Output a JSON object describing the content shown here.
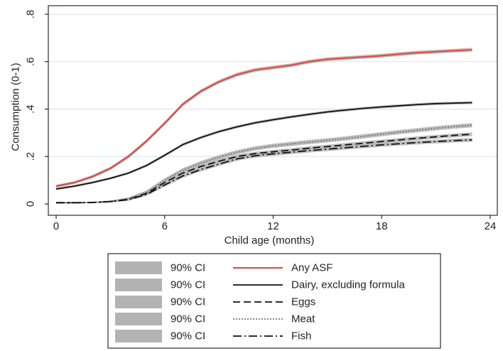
{
  "chart_data": {
    "type": "line",
    "xlabel": "Child age (months)",
    "ylabel": "Consumption (0-1)",
    "xlim": [
      -0.5,
      24
    ],
    "ylim": [
      0,
      0.8
    ],
    "x_ticks": [
      0,
      6,
      12,
      18,
      24
    ],
    "x_tick_labels": [
      "0",
      "6",
      "12",
      "18",
      "24"
    ],
    "y_ticks": [
      0,
      0.2,
      0.4,
      0.6,
      0.8
    ],
    "y_tick_labels": [
      "0",
      ".2",
      ".4",
      ".6",
      ".8"
    ],
    "grid": "horizontal",
    "legend_position": "bottom",
    "legend": [
      {
        "ci_label": "90% CI",
        "series_label": "Any ASF"
      },
      {
        "ci_label": "90% CI",
        "series_label": "Dairy, excluding formula"
      },
      {
        "ci_label": "90% CI",
        "series_label": "Eggs"
      },
      {
        "ci_label": "90% CI",
        "series_label": "Meat"
      },
      {
        "ci_label": "90% CI",
        "series_label": "Fish"
      }
    ],
    "x": [
      0,
      1,
      2,
      3,
      4,
      5,
      6,
      7,
      8,
      9,
      10,
      11,
      12,
      13,
      14,
      15,
      16,
      17,
      18,
      19,
      20,
      21,
      22,
      23
    ],
    "series": [
      {
        "name": "Any ASF",
        "color": "#e8413a",
        "dash": "solid",
        "values": [
          0.075,
          0.09,
          0.115,
          0.15,
          0.2,
          0.265,
          0.34,
          0.42,
          0.475,
          0.515,
          0.545,
          0.565,
          0.575,
          0.585,
          0.6,
          0.61,
          0.615,
          0.62,
          0.625,
          0.632,
          0.638,
          0.642,
          0.646,
          0.65
        ],
        "ci_low": [
          0.069,
          0.084,
          0.108,
          0.143,
          0.192,
          0.257,
          0.332,
          0.412,
          0.467,
          0.507,
          0.537,
          0.557,
          0.567,
          0.577,
          0.592,
          0.602,
          0.607,
          0.612,
          0.617,
          0.624,
          0.63,
          0.634,
          0.638,
          0.642
        ],
        "ci_high": [
          0.081,
          0.096,
          0.122,
          0.157,
          0.208,
          0.273,
          0.348,
          0.428,
          0.483,
          0.523,
          0.553,
          0.573,
          0.583,
          0.593,
          0.608,
          0.618,
          0.623,
          0.628,
          0.633,
          0.64,
          0.646,
          0.65,
          0.654,
          0.658
        ]
      },
      {
        "name": "Dairy, excluding formula",
        "color": "#111111",
        "dash": "solid",
        "values": [
          0.063,
          0.075,
          0.09,
          0.108,
          0.13,
          0.162,
          0.205,
          0.25,
          0.28,
          0.305,
          0.325,
          0.342,
          0.355,
          0.367,
          0.378,
          0.388,
          0.396,
          0.403,
          0.409,
          0.414,
          0.419,
          0.423,
          0.425,
          0.427
        ],
        "ci_low": [
          0.058,
          0.07,
          0.085,
          0.103,
          0.125,
          0.156,
          0.199,
          0.244,
          0.274,
          0.299,
          0.319,
          0.336,
          0.349,
          0.361,
          0.372,
          0.382,
          0.39,
          0.397,
          0.403,
          0.408,
          0.413,
          0.417,
          0.419,
          0.421
        ],
        "ci_high": [
          0.068,
          0.08,
          0.095,
          0.113,
          0.135,
          0.168,
          0.211,
          0.256,
          0.286,
          0.311,
          0.331,
          0.348,
          0.361,
          0.373,
          0.384,
          0.394,
          0.402,
          0.409,
          0.415,
          0.42,
          0.425,
          0.429,
          0.431,
          0.433
        ]
      },
      {
        "name": "Eggs",
        "color": "#111111",
        "dash": "10,5",
        "values": [
          0.005,
          0.005,
          0.006,
          0.01,
          0.02,
          0.045,
          0.09,
          0.13,
          0.158,
          0.18,
          0.2,
          0.212,
          0.22,
          0.227,
          0.235,
          0.242,
          0.249,
          0.256,
          0.263,
          0.27,
          0.277,
          0.283,
          0.289,
          0.294
        ],
        "ci_low": [
          0.002,
          0.002,
          0.003,
          0.006,
          0.015,
          0.039,
          0.083,
          0.122,
          0.15,
          0.172,
          0.192,
          0.204,
          0.212,
          0.219,
          0.227,
          0.234,
          0.241,
          0.248,
          0.255,
          0.262,
          0.269,
          0.275,
          0.281,
          0.286
        ],
        "ci_high": [
          0.008,
          0.008,
          0.009,
          0.014,
          0.025,
          0.051,
          0.097,
          0.138,
          0.166,
          0.188,
          0.208,
          0.22,
          0.228,
          0.235,
          0.243,
          0.25,
          0.257,
          0.264,
          0.271,
          0.278,
          0.285,
          0.291,
          0.297,
          0.302
        ]
      },
      {
        "name": "Meat",
        "color": "#777777",
        "dash": "2,2",
        "values": [
          0.005,
          0.005,
          0.006,
          0.01,
          0.022,
          0.05,
          0.1,
          0.142,
          0.172,
          0.197,
          0.218,
          0.234,
          0.245,
          0.253,
          0.261,
          0.268,
          0.276,
          0.285,
          0.294,
          0.303,
          0.311,
          0.319,
          0.326,
          0.332
        ],
        "ci_low": [
          0.002,
          0.002,
          0.003,
          0.006,
          0.016,
          0.043,
          0.092,
          0.133,
          0.163,
          0.188,
          0.209,
          0.225,
          0.236,
          0.244,
          0.252,
          0.259,
          0.267,
          0.276,
          0.285,
          0.294,
          0.302,
          0.31,
          0.317,
          0.323
        ],
        "ci_high": [
          0.008,
          0.008,
          0.009,
          0.014,
          0.028,
          0.057,
          0.108,
          0.151,
          0.181,
          0.206,
          0.227,
          0.243,
          0.254,
          0.262,
          0.27,
          0.277,
          0.285,
          0.294,
          0.303,
          0.312,
          0.32,
          0.328,
          0.335,
          0.341
        ]
      },
      {
        "name": "Fish",
        "color": "#111111",
        "dash": "12,4,2,4",
        "values": [
          0.005,
          0.005,
          0.006,
          0.01,
          0.018,
          0.04,
          0.08,
          0.118,
          0.145,
          0.168,
          0.19,
          0.203,
          0.211,
          0.218,
          0.225,
          0.231,
          0.237,
          0.243,
          0.249,
          0.254,
          0.259,
          0.263,
          0.267,
          0.27
        ],
        "ci_low": [
          0.002,
          0.002,
          0.003,
          0.006,
          0.013,
          0.034,
          0.073,
          0.11,
          0.137,
          0.16,
          0.182,
          0.195,
          0.203,
          0.21,
          0.217,
          0.223,
          0.229,
          0.235,
          0.241,
          0.246,
          0.251,
          0.255,
          0.259,
          0.262
        ],
        "ci_high": [
          0.008,
          0.008,
          0.009,
          0.014,
          0.023,
          0.046,
          0.087,
          0.126,
          0.153,
          0.176,
          0.198,
          0.211,
          0.219,
          0.226,
          0.233,
          0.239,
          0.245,
          0.251,
          0.257,
          0.262,
          0.267,
          0.271,
          0.275,
          0.278
        ]
      }
    ],
    "ci_band_color": "#b3b3b3",
    "grid_color": "#cfe6ee"
  }
}
